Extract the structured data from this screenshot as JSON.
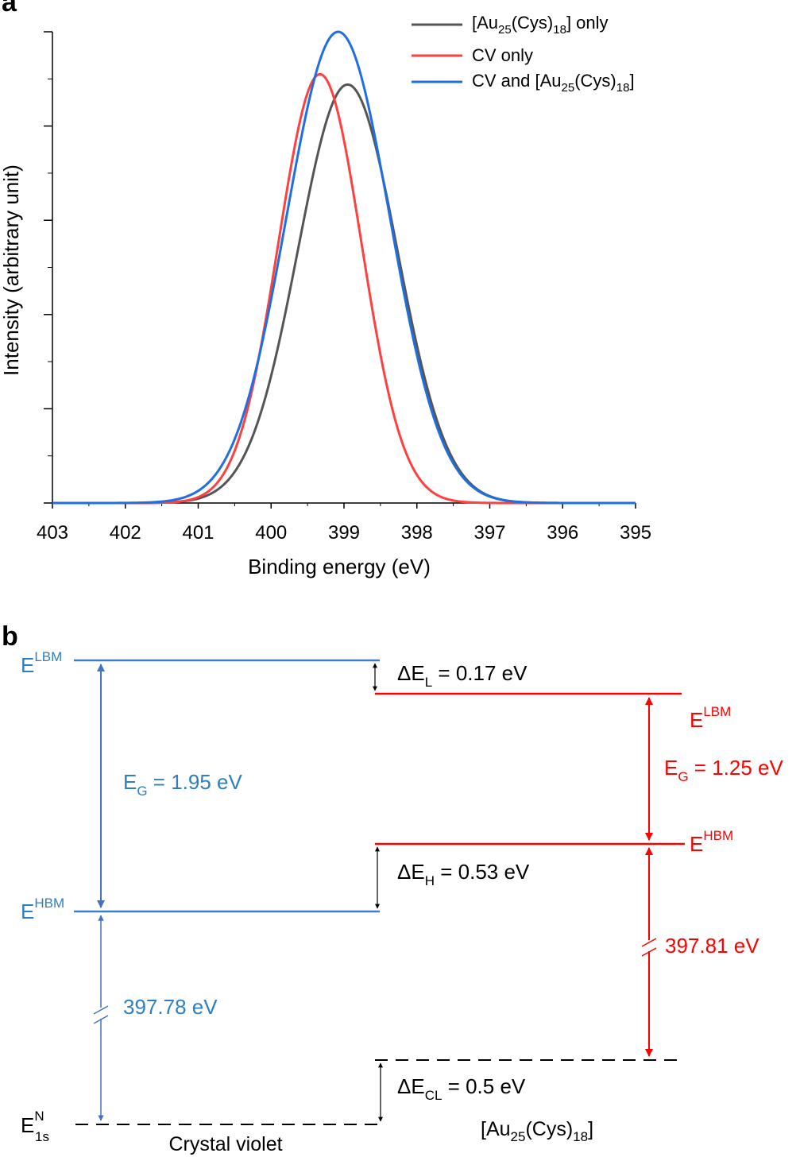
{
  "colors": {
    "au25": "#555555",
    "cv": "#ff4040",
    "combined": "#1f6fe0",
    "left_levels": "#3d7fc8",
    "left_arrows": "#4472c4",
    "left_text": "#2d7fc1",
    "right_red": "#ff0000",
    "black": "#000000"
  },
  "panel_a": {
    "letter": "a",
    "chart_data": {
      "type": "line",
      "xlabel": "Binding energy (eV)",
      "ylabel": "Intensity (arbitrary unit)",
      "xlim": [
        403,
        395
      ],
      "ylim": [
        0,
        1.0
      ],
      "x_ticks": [
        403,
        402,
        401,
        400,
        399,
        398,
        397,
        396,
        395
      ],
      "x_tick_labels": [
        "403",
        "402",
        "401",
        "400",
        "399",
        "398",
        "397",
        "396",
        "395"
      ],
      "legend_position": "top-right",
      "series": [
        {
          "key": "au25",
          "name_parts": [
            "[Au",
            "25",
            "(Cys)",
            "18",
            "] only"
          ],
          "peak_center": 398.95,
          "peak_height": 0.888,
          "sigma": 0.68
        },
        {
          "key": "cv",
          "name_parts": [
            "CV only"
          ],
          "peak_center": 399.33,
          "peak_height": 0.91,
          "sigma": 0.57
        },
        {
          "key": "combined",
          "name_parts": [
            "CV and [Au",
            "25",
            "(Cys)",
            "18",
            "]"
          ],
          "peak_center": 399.08,
          "peak_height": 1.0,
          "sigma": 0.71
        }
      ]
    }
  },
  "panel_b": {
    "letter": "b",
    "left": {
      "e_lbm": {
        "main": "E",
        "sup": "LBM"
      },
      "e_hbm": {
        "main": "E",
        "sup": "HBM"
      },
      "e_n1s": {
        "main": "E",
        "sup": "N",
        "sub": "1s"
      },
      "gap": {
        "pre": "E",
        "sub": "G",
        "post": " = 1.95 eV"
      },
      "binding": "397.78 eV",
      "name": "Crystal violet"
    },
    "right": {
      "e_lbm": {
        "main": "E",
        "sup": "LBM"
      },
      "e_hbm": {
        "main": "E",
        "sup": "HBM"
      },
      "gap": {
        "pre": "E",
        "sub": "G",
        "post": " = 1.25 eV"
      },
      "binding": "397.81 eV",
      "name_parts": [
        "[Au",
        "25",
        "(Cys)",
        "18",
        "]"
      ]
    },
    "offsets": {
      "delta_l": {
        "pre": "ΔE",
        "sub": "L",
        "post": " = 0.17 eV"
      },
      "delta_h": {
        "pre": "ΔE",
        "sub": "H",
        "post": " = 0.53 eV"
      },
      "delta_cl": {
        "pre": "ΔE",
        "sub": "CL",
        "post": " = 0.5 eV"
      }
    }
  }
}
